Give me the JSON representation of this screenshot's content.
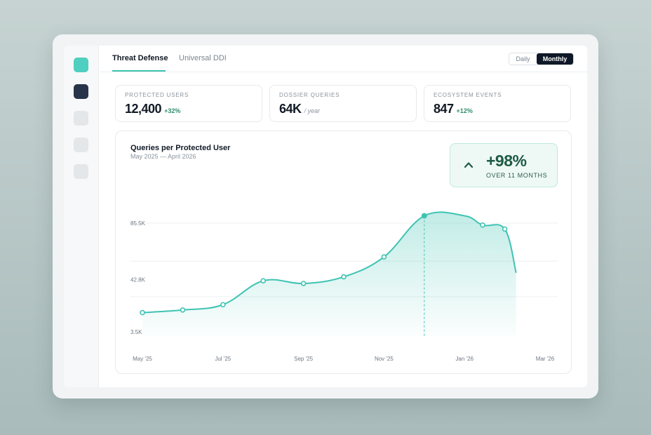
{
  "tabs": [
    {
      "label": "Threat Defense",
      "active": true
    },
    {
      "label": "Universal DDI",
      "active": false
    }
  ],
  "toggle": {
    "daily": "Daily",
    "monthly": "Monthly",
    "selected": "Monthly"
  },
  "stats": [
    {
      "label": "PROTECTED USERS",
      "value": "12,400",
      "delta": "+32%",
      "unit": ""
    },
    {
      "label": "DOSSIER QUERIES",
      "value": "64K",
      "delta": "",
      "unit": "/ year"
    },
    {
      "label": "ECOSYSTEM EVENTS",
      "value": "847",
      "delta": "+12%",
      "unit": ""
    }
  ],
  "badge": {
    "value": "+98%",
    "caption": "OVER 11 MONTHS",
    "icon": "chevron-up-icon"
  },
  "colors": {
    "accent": "#3fc3b3",
    "dark": "#0f1827",
    "positive": "#2f8f6c"
  },
  "chart_data": {
    "type": "area",
    "title": "Queries per Protected User",
    "subtitle": "May 2025 — April 2026",
    "ytick_labels": [
      "85.5K",
      "42.8K",
      "3.5K"
    ],
    "ytick_values": [
      85.5,
      42.8,
      3.5
    ],
    "xtick_labels": [
      "May '25",
      "Jul '25",
      "Sep '25",
      "Nov '25",
      "Jan '26",
      "Mar '26"
    ],
    "xtick_index": [
      0,
      2,
      4,
      6,
      8,
      10
    ],
    "x_index": [
      0,
      1,
      2,
      3,
      4,
      5,
      6,
      7,
      8,
      8.45,
      9,
      9.28
    ],
    "values": [
      18,
      20,
      24,
      42,
      40,
      45,
      60,
      91,
      91,
      84,
      81,
      48
    ],
    "markers": [
      0,
      1,
      2,
      3,
      4,
      5,
      6,
      7,
      9,
      10
    ],
    "ylim": [
      3.5,
      85.5
    ],
    "grid": true,
    "highlight_index": 7
  }
}
